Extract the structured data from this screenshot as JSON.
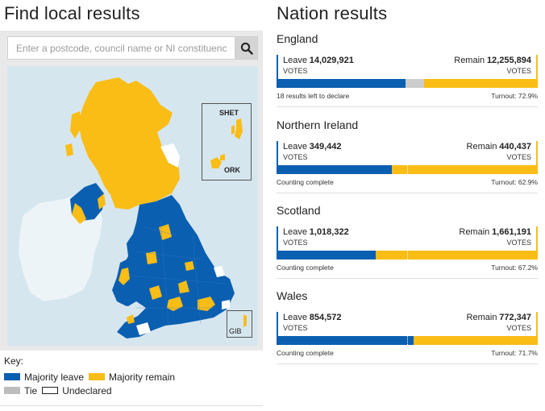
{
  "left": {
    "title": "Find local results",
    "search_placeholder": "Enter a postcode, council name or NI constituency",
    "insets": {
      "shetland": "SHET",
      "orkney": "ORK",
      "gibraltar": "GIB"
    },
    "key": {
      "title": "Key:",
      "leave": "Majority leave",
      "remain": "Majority remain",
      "tie": "Tie",
      "undeclared": "Undeclared"
    }
  },
  "right": {
    "title": "Nation results",
    "nations": [
      {
        "name": "England",
        "leave_label": "Leave",
        "leave_votes": "14,029,921",
        "remain_label": "Remain",
        "remain_votes": "12,255,894",
        "votes_label": "VOTES",
        "leave_share": 0.495,
        "undeclared_share": 0.07,
        "remain_share": 0.435,
        "status": "18 results left to declare",
        "turnout": "Turnout: 72.9%"
      },
      {
        "name": "Northern Ireland",
        "leave_label": "Leave",
        "leave_votes": "349,442",
        "remain_label": "Remain",
        "remain_votes": "440,437",
        "votes_label": "VOTES",
        "leave_share": 0.442,
        "undeclared_share": 0,
        "remain_share": 0.558,
        "status": "Counting complete",
        "turnout": "Turnout: 62.9%"
      },
      {
        "name": "Scotland",
        "leave_label": "Leave",
        "leave_votes": "1,018,322",
        "remain_label": "Remain",
        "remain_votes": "1,661,191",
        "votes_label": "VOTES",
        "leave_share": 0.38,
        "undeclared_share": 0,
        "remain_share": 0.62,
        "status": "Counting complete",
        "turnout": "Turnout: 67.2%"
      },
      {
        "name": "Wales",
        "leave_label": "Leave",
        "leave_votes": "854,572",
        "remain_label": "Remain",
        "remain_votes": "772,347",
        "votes_label": "VOTES",
        "leave_share": 0.525,
        "undeclared_share": 0,
        "remain_share": 0.475,
        "status": "Counting complete",
        "turnout": "Turnout: 71.7%"
      }
    ]
  },
  "colors": {
    "leave": "#0b5fb1",
    "remain": "#f9bd16",
    "tie": "#bdbdbd",
    "map_sea": "#d6e6ef"
  }
}
